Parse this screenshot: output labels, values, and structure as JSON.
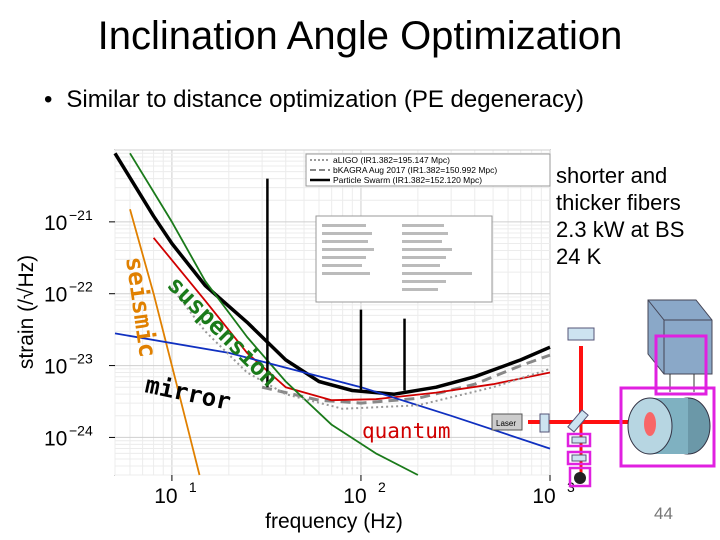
{
  "slide": {
    "title": "Inclination Angle Optimization",
    "bullet": "Similar to distance optimization (PE degeneracy)",
    "bullet_marker": "•",
    "side_note": "shorter and\nthicker fibers\n2.3 kW at BS\n24 K",
    "page_number": "44"
  },
  "chart_data": {
    "type": "line",
    "xlabel": "frequency (Hz)",
    "ylabel": "strain (/√Hz)",
    "x_scale": "log",
    "y_scale": "log",
    "xlim": [
      5,
      1000
    ],
    "ylim": [
      3e-25,
      1e-20
    ],
    "x_ticks": [
      {
        "value": 10,
        "base": "10",
        "exp": "1"
      },
      {
        "value": 100,
        "base": "10",
        "exp": "2"
      },
      {
        "value": 1000,
        "base": "10",
        "exp": "3"
      }
    ],
    "y_ticks": [
      {
        "value": 1e-21,
        "base": "10",
        "exp": "−21"
      },
      {
        "value": 1e-22,
        "base": "10",
        "exp": "−22"
      },
      {
        "value": 1e-23,
        "base": "10",
        "exp": "−23"
      },
      {
        "value": 1e-24,
        "base": "10",
        "exp": "−24"
      }
    ],
    "grid": true,
    "legend": {
      "placement": "top-right",
      "entries": [
        {
          "label": "aLIGO (IR1.382=195.147 Mpc)",
          "color": "#999999",
          "style": "dotted"
        },
        {
          "label": "bKAGRA Aug 2017 (IR1.382=150.992 Mpc)",
          "color": "#888888",
          "style": "dashed"
        },
        {
          "label": "Particle Swarm (IR1.382=152.120 Mpc)",
          "color": "#000000",
          "style": "solid"
        }
      ]
    },
    "series": [
      {
        "role": "total",
        "color": "#000000",
        "points": [
          [
            5,
            9e-21
          ],
          [
            8,
            1.2e-21
          ],
          [
            10,
            5e-22
          ],
          [
            15,
            1.3e-22
          ],
          [
            25,
            4e-23
          ],
          [
            40,
            1.2e-23
          ],
          [
            60,
            6e-24
          ],
          [
            90,
            4.5e-24
          ],
          [
            150,
            4e-24
          ],
          [
            250,
            5e-24
          ],
          [
            400,
            7e-24
          ],
          [
            700,
            1.2e-23
          ],
          [
            1000,
            1.8e-23
          ]
        ]
      },
      {
        "role": "bkagra",
        "color": "#888888",
        "points": [
          [
            30,
            5e-24
          ],
          [
            60,
            3.3e-24
          ],
          [
            100,
            3e-24
          ],
          [
            200,
            3.5e-24
          ],
          [
            400,
            5.5e-24
          ],
          [
            700,
            1e-23
          ],
          [
            1000,
            1.4e-23
          ]
        ]
      },
      {
        "role": "quantum",
        "color": "#d00000",
        "points": [
          [
            8,
            6e-22
          ],
          [
            15,
            8e-23
          ],
          [
            25,
            1.5e-23
          ],
          [
            40,
            5e-24
          ],
          [
            70,
            3.3e-24
          ],
          [
            120,
            3.4e-24
          ],
          [
            250,
            4.2e-24
          ],
          [
            500,
            5.5e-24
          ],
          [
            1000,
            8e-24
          ]
        ]
      },
      {
        "role": "suspension",
        "color": "#1a7a1a",
        "points": [
          [
            6,
            9e-21
          ],
          [
            10,
            1e-21
          ],
          [
            15,
            1.5e-22
          ],
          [
            25,
            2.5e-23
          ],
          [
            40,
            6e-24
          ],
          [
            70,
            1.5e-24
          ],
          [
            120,
            6e-25
          ],
          [
            200,
            3e-25
          ]
        ]
      },
      {
        "role": "seismic",
        "color": "#e08000",
        "points": [
          [
            6,
            1.5e-21
          ],
          [
            8,
            1e-22
          ],
          [
            10,
            1e-23
          ],
          [
            12,
            1.5e-24
          ],
          [
            14,
            3e-25
          ]
        ]
      },
      {
        "role": "mirror",
        "color": "#1030c0",
        "points": [
          [
            5,
            2.8e-23
          ],
          [
            20,
            1.5e-23
          ],
          [
            100,
            5e-24
          ],
          [
            300,
            2e-24
          ],
          [
            1000,
            7e-25
          ]
        ]
      },
      {
        "role": "aligo",
        "color": "#999999",
        "points": [
          [
            10,
            1.2e-22
          ],
          [
            15,
            3e-23
          ],
          [
            25,
            8e-24
          ],
          [
            40,
            4e-24
          ],
          [
            80,
            2.5e-24
          ],
          [
            200,
            2.8e-24
          ],
          [
            500,
            5e-24
          ],
          [
            1000,
            9e-24
          ]
        ]
      }
    ],
    "annotations": [
      {
        "text": "seismic",
        "color": "#e08000"
      },
      {
        "text": "suspension",
        "color": "#1a7a1a"
      },
      {
        "text": "mirror",
        "color": "#000000"
      },
      {
        "text": "quantum",
        "color": "#d00000"
      }
    ],
    "inset_visible": true
  },
  "setup_diagram": {
    "laser_label": "Laser"
  }
}
